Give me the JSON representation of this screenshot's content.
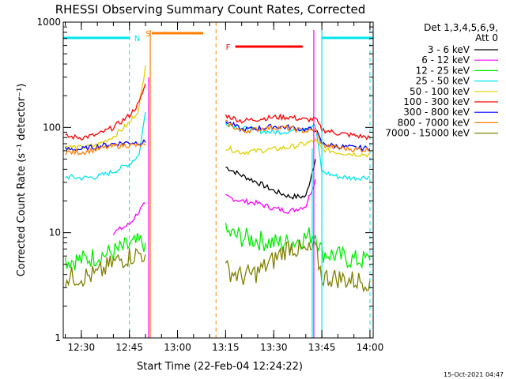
{
  "chart_data": {
    "type": "line",
    "title": "RHESSI Observing Summary Count Rates, Corrected",
    "xlabel": "Start Time (22-Feb-04 12:24:22)",
    "ylabel": "Corrected Count Rate (s⁻¹ detector⁻¹)",
    "yscale": "log",
    "ylim": [
      1,
      1000
    ],
    "y_ticks": [
      "1",
      "10",
      "100",
      "1000"
    ],
    "xlim": [
      "12:24:22",
      "14:01"
    ],
    "x_ticks": [
      "12:30",
      "12:45",
      "13:00",
      "13:15",
      "13:30",
      "13:45",
      "14:00"
    ],
    "grid": false,
    "legend_placement": "right",
    "legend_header": [
      "Det 1,3,4,5,6,9,",
      "Att 0"
    ],
    "footer_date": "15-Oct-2021 04:47",
    "gaps": [
      {
        "start": "12:51",
        "end": "13:12"
      },
      {
        "start": "13:42",
        "end": "13:45"
      }
    ],
    "flags": [
      {
        "label": "N",
        "color": "#00e5ee",
        "start": "12:24",
        "end": "12:45",
        "dashed_at": "12:45"
      },
      {
        "label": "S",
        "color": "#ff7f00",
        "start": "12:52",
        "end": "13:08",
        "dashed_at": "13:12"
      },
      {
        "label": "F",
        "color": "#ff0000",
        "start": "13:18",
        "end": "13:39",
        "dashed_at": ""
      },
      {
        "label": "",
        "color": "#00e5ee",
        "start": "13:45",
        "end": "14:01",
        "dashed_at": "14:00"
      }
    ],
    "times": [
      "12:25",
      "12:30",
      "12:35",
      "12:40",
      "12:45",
      "12:48",
      "12:50",
      "13:13",
      "13:15",
      "13:20",
      "13:25",
      "13:30",
      "13:35",
      "13:40",
      "13:43",
      "13:45",
      "13:50",
      "13:55",
      "14:00"
    ],
    "series": [
      {
        "name": "3 - 6 keV",
        "color": "#000000",
        "values": [
          null,
          null,
          null,
          null,
          null,
          null,
          null,
          null,
          42,
          35,
          30,
          25,
          22,
          22,
          50,
          null,
          null,
          null,
          null
        ]
      },
      {
        "name": "6 - 12 keV",
        "color": "#ff00ff",
        "values": [
          null,
          null,
          null,
          10,
          12,
          16,
          19,
          null,
          22,
          20,
          19,
          17,
          16,
          18,
          32,
          null,
          null,
          null,
          null
        ]
      },
      {
        "name": "12 - 25 keV",
        "color": "#00ee00",
        "values": [
          5.5,
          5.5,
          6,
          6.5,
          7.5,
          8,
          8,
          null,
          10,
          9,
          8.5,
          8,
          8,
          9,
          10,
          6.5,
          6,
          5.5,
          5.5
        ]
      },
      {
        "name": "25 - 50 keV",
        "color": "#00e5ee",
        "values": [
          34,
          33,
          34,
          38,
          45,
          55,
          140,
          null,
          110,
          98,
          93,
          90,
          92,
          100,
          105,
          38,
          34,
          33,
          34
        ]
      },
      {
        "name": "50 - 100 keV",
        "color": "#e0d000",
        "values": [
          66,
          64,
          68,
          82,
          110,
          150,
          390,
          null,
          64,
          58,
          60,
          62,
          65,
          70,
          75,
          62,
          58,
          56,
          55
        ]
      },
      {
        "name": "100 - 300 keV",
        "color": "#ff0000",
        "values": [
          82,
          80,
          85,
          100,
          130,
          170,
          260,
          null,
          130,
          115,
          120,
          125,
          125,
          118,
          120,
          95,
          88,
          84,
          80
        ]
      },
      {
        "name": "300 - 800 keV",
        "color": "#0000ff",
        "values": [
          62,
          62,
          66,
          70,
          72,
          72,
          72,
          null,
          115,
          95,
          98,
          102,
          100,
          95,
          96,
          70,
          66,
          64,
          63
        ]
      },
      {
        "name": "800 - 7000 keV",
        "color": "#ff7f00",
        "values": [
          58,
          58,
          62,
          66,
          68,
          67,
          68,
          null,
          112,
          92,
          96,
          100,
          98,
          92,
          94,
          68,
          64,
          62,
          61
        ]
      },
      {
        "name": "7000 - 15000 keV",
        "color": "#808000",
        "values": [
          3.8,
          3.8,
          4,
          5.2,
          6,
          6.3,
          6.2,
          null,
          4.5,
          3.8,
          4.2,
          5.5,
          7.5,
          6.5,
          7,
          3.8,
          3.7,
          3.5,
          3.5
        ]
      }
    ]
  }
}
